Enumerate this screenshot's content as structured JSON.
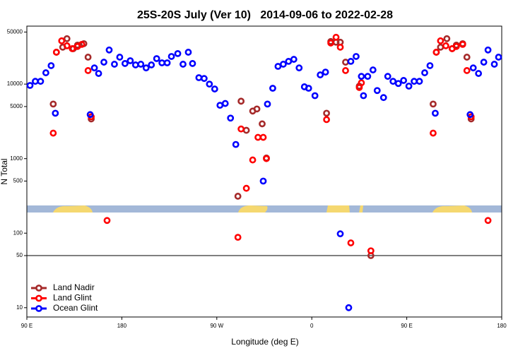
{
  "chart_data": {
    "type": "scatter",
    "title": "25S-20S July (Ver 10)   2014-09-06 to 2022-02-28",
    "x_label": "Longitude (deg E)",
    "y_label": "N Total",
    "log_y": true,
    "xlim": [
      90,
      540
    ],
    "ylim": [
      7.5,
      60000
    ],
    "xticks": [
      {
        "value": 90,
        "label": "90 E"
      },
      180,
      {
        "value": 270,
        "label": "90 W"
      },
      {
        "value": 360,
        "label": "0"
      },
      {
        "value": 450,
        "label": "90 E"
      },
      {
        "value": 540,
        "label": "180"
      }
    ],
    "yticks": [
      10,
      50,
      100,
      500,
      1000,
      5000,
      10000,
      50000
    ],
    "hline": 50,
    "legend": "lower left",
    "series": [
      {
        "name": "Land Nadir",
        "color": "#a52a2a",
        "x": [
          115,
          118,
          124,
          128,
          134,
          138,
          144,
          148,
          151,
          290,
          293,
          298,
          304,
          308,
          313,
          317,
          374,
          378,
          383,
          387,
          392,
          405,
          416,
          475,
          478,
          482,
          488,
          493,
          497,
          503,
          507,
          511
        ],
        "values": [
          5400,
          26800,
          31300,
          40700,
          29900,
          33400,
          34900,
          23000,
          3410,
          313,
          5900,
          2400,
          4350,
          4640,
          2930,
          1020,
          4070,
          37300,
          36500,
          36500,
          19700,
          9400,
          50,
          5400,
          26800,
          31300,
          40700,
          29900,
          33400,
          34900,
          23000,
          3410
        ]
      },
      {
        "name": "Land Glint",
        "color": "#ff0000",
        "x": [
          115,
          118,
          123,
          128,
          133,
          138,
          142,
          148,
          151,
          166,
          290,
          293,
          298,
          304,
          309,
          314,
          317,
          374,
          378,
          383,
          387,
          392,
          397,
          405,
          407,
          416,
          475,
          478,
          482,
          487,
          493,
          497,
          503,
          507,
          511,
          527
        ],
        "values": [
          2200,
          26800,
          38100,
          32700,
          29900,
          32000,
          34100,
          15200,
          3650,
          148,
          88,
          2500,
          400,
          960,
          1930,
          1930,
          1000,
          3340,
          35600,
          42500,
          31300,
          15200,
          74,
          9000,
          10400,
          58,
          2200,
          26800,
          38100,
          32700,
          29900,
          32000,
          34100,
          15200,
          3650,
          148
        ]
      },
      {
        "name": "Ocean Glint",
        "color": "#0000ff",
        "x": [
          93,
          98,
          103,
          108,
          113,
          117,
          150,
          154,
          158,
          163,
          168,
          173,
          178,
          183,
          188,
          193,
          198,
          203,
          208,
          213,
          218,
          223,
          227,
          233,
          238,
          243,
          247,
          253,
          258,
          263,
          268,
          273,
          278,
          283,
          288,
          314,
          318,
          323,
          328,
          333,
          338,
          343,
          348,
          353,
          357,
          363,
          368,
          373,
          387,
          395,
          397,
          402,
          407,
          409,
          413,
          418,
          422,
          428,
          432,
          437,
          442,
          447,
          452,
          457,
          462,
          467,
          472,
          477,
          510,
          513,
          518,
          523,
          527,
          533,
          537
        ],
        "values": [
          9600,
          10900,
          10900,
          14200,
          17700,
          4070,
          3900,
          16500,
          13900,
          19700,
          28700,
          18500,
          23000,
          18900,
          20600,
          18100,
          18500,
          16500,
          18100,
          22000,
          19300,
          19300,
          23500,
          25700,
          18500,
          26800,
          18900,
          12200,
          11900,
          10000,
          8600,
          5200,
          5500,
          3500,
          1550,
          500,
          5400,
          8800,
          17300,
          18500,
          20200,
          21500,
          16500,
          9200,
          8800,
          7000,
          13300,
          14500,
          98,
          10,
          20200,
          23500,
          12700,
          7000,
          12700,
          15500,
          8200,
          6600,
          12700,
          10900,
          10200,
          11200,
          9400,
          10900,
          10900,
          14200,
          17700,
          4070,
          3900,
          16500,
          13900,
          19700,
          28700,
          18500,
          23000
        ]
      }
    ]
  }
}
